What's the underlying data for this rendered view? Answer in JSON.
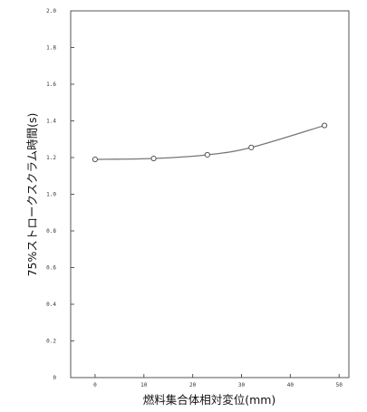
{
  "chart_data": {
    "type": "line",
    "title": "",
    "xlabel": "燃料集合体相対変位(mm)",
    "ylabel": "75%ストロークスクラム時間(s)",
    "xlim": [
      -5,
      52
    ],
    "ylim": [
      0,
      2.0
    ],
    "x_ticks": [
      "0",
      "10",
      "20",
      "30",
      "40",
      "50"
    ],
    "y_ticks": [
      "0",
      "0.2",
      "0.4",
      "0.6",
      "0.8",
      "1.0",
      "1.2",
      "1.4",
      "1.6",
      "1.8",
      "2.0"
    ],
    "grid": false,
    "series": [
      {
        "x": [
          0,
          12,
          23,
          32,
          47
        ],
        "y": [
          1.19,
          1.195,
          1.215,
          1.255,
          1.375
        ]
      }
    ],
    "colors": {
      "line": "#777777",
      "axis": "#555555",
      "marker_fill": "#ffffff"
    }
  }
}
